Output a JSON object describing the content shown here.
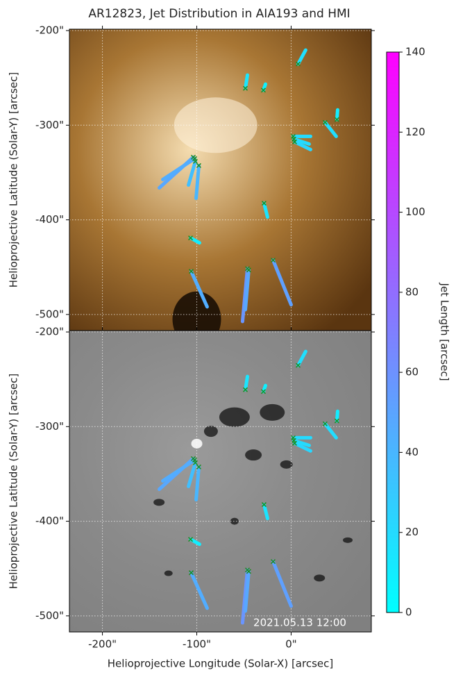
{
  "chart_data": [
    {
      "type": "jet_map",
      "title": "AR12823, Jet Distribution in AIA193 and HMI",
      "ylabel": "Helioprojective Latitude (Solar-Y) [arcsec]",
      "background": [
        "#f4dcb0",
        "#a87634",
        "#5a3510"
      ],
      "xlim": [
        -235,
        85
      ],
      "ylim": [
        -517,
        -198.5
      ],
      "xticks": [
        -200,
        -100,
        0
      ],
      "yticks": [
        {
          "value": -200,
          "label": "-200\""
        },
        {
          "value": -300,
          "label": "-300\""
        },
        {
          "value": -400,
          "label": "-400\""
        },
        {
          "value": -500,
          "label": "-500\""
        }
      ],
      "grid": true,
      "marker_color": "#1e8c1e",
      "jets": {
        "x": [
          7.4,
          -48.5,
          -29.4,
          36,
          48.5,
          2.2,
          3.7,
          2.9,
          -103.7,
          -102.2,
          -101.5,
          -97.8,
          -28.7,
          -106.6,
          -105.9,
          -46.3,
          -44.9,
          -19.1
        ],
        "y": [
          -235.3,
          -261,
          -263,
          -297,
          -294,
          -311.8,
          -317.6,
          -314.7,
          -333.8,
          -335.3,
          -338.2,
          -342.6,
          -382.4,
          -419.1,
          -454.4,
          -451.5,
          -453,
          -442.6
        ],
        "x_end": [
          15.4,
          -46.3,
          -27.2,
          47.8,
          49.3,
          20.6,
          20.6,
          19.1,
          -139.7,
          -136,
          -108.8,
          -100.7,
          -25,
          -97.1,
          -89,
          -51.5,
          -48.5,
          0
        ],
        "y_end": [
          -220.6,
          -247,
          -256.6,
          -311.8,
          -283.8,
          -311.8,
          -325.7,
          -319.9,
          -366.2,
          -357.4,
          -363.2,
          -377.2,
          -397.1,
          -424.3,
          -491.9,
          -507.4,
          -494.9,
          -489.7
        ],
        "length": [
          17,
          14,
          8,
          18,
          10,
          20,
          22,
          20,
          48,
          45,
          35,
          40,
          15,
          10,
          45,
          58,
          48,
          52
        ]
      },
      "colorbar": {
        "label": "Jet Length [arcsec]",
        "lim": [
          0,
          140
        ],
        "ticks": [
          0,
          20,
          40,
          60,
          80,
          100,
          120,
          140
        ],
        "colors": [
          "#00ffff",
          "#ff00ff"
        ]
      }
    },
    {
      "type": "jet_map",
      "ylabel": "Helioprojective Latitude (Solar-Y) [arcsec]",
      "xlabel": "Helioprojective Longitude (Solar-X) [arcsec]",
      "annotation": "2021.05.13 12:00",
      "background": [
        "#9a9a9a",
        "#8a8a8a",
        "#808080"
      ],
      "xlim": [
        -235,
        85
      ],
      "ylim": [
        -517,
        -198.5
      ],
      "xticks": [
        {
          "value": -200,
          "label": "-200\""
        },
        {
          "value": -100,
          "label": "-100\""
        },
        {
          "value": 0,
          "label": "0\""
        }
      ],
      "yticks": [
        {
          "value": -200,
          "label": "-200\""
        },
        {
          "value": -300,
          "label": "-300\""
        },
        {
          "value": -400,
          "label": "-400\""
        },
        {
          "value": -500,
          "label": "-500\""
        }
      ],
      "grid": true,
      "marker_color": "#1e8c1e",
      "jets": {
        "x": [
          7.4,
          -48.5,
          -29.4,
          36,
          48.5,
          2.2,
          3.7,
          2.9,
          -103.7,
          -102.2,
          -101.5,
          -97.8,
          -28.7,
          -106.6,
          -105.9,
          -46.3,
          -44.9,
          -19.1
        ],
        "y": [
          -235.3,
          -261,
          -263,
          -297,
          -294,
          -311.8,
          -317.6,
          -314.7,
          -333.8,
          -335.3,
          -338.2,
          -342.6,
          -382.4,
          -419.1,
          -454.4,
          -451.5,
          -453,
          -442.6
        ],
        "x_end": [
          15.4,
          -46.3,
          -27.2,
          47.8,
          49.3,
          20.6,
          20.6,
          19.1,
          -139.7,
          -136,
          -108.8,
          -100.7,
          -25,
          -97.1,
          -89,
          -51.5,
          -48.5,
          0
        ],
        "y_end": [
          -220.6,
          -247,
          -256.6,
          -311.8,
          -283.8,
          -311.8,
          -325.7,
          -319.9,
          -366.2,
          -357.4,
          -363.2,
          -377.2,
          -397.1,
          -424.3,
          -491.9,
          -507.4,
          -494.9,
          -489.7
        ],
        "length": [
          17,
          14,
          8,
          18,
          10,
          20,
          22,
          20,
          48,
          45,
          35,
          40,
          15,
          10,
          45,
          58,
          48,
          52
        ]
      }
    }
  ]
}
